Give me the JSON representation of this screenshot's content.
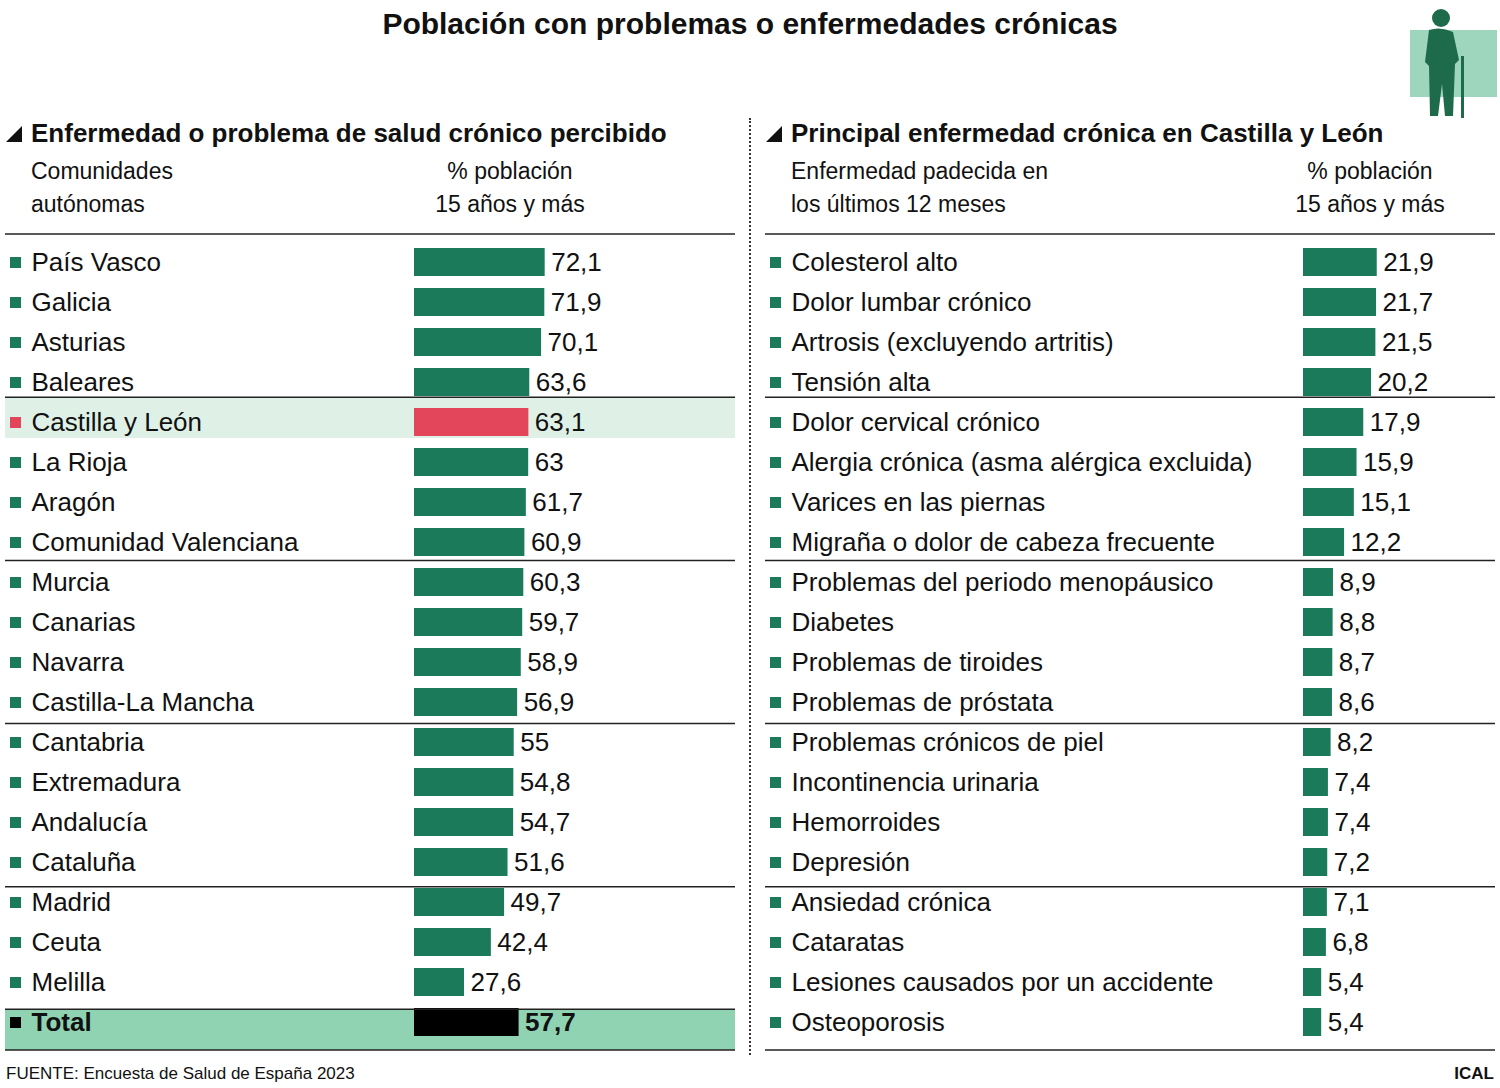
{
  "title": "Población con problemas o enfermedades crónicas",
  "source": "FUENTE: Encuesta de Salud de España 2023",
  "credit": "ICAL",
  "chart_data": [
    {
      "type": "bar",
      "orientation": "horizontal",
      "title": "Enfermedad o problema de salud crónico percibido",
      "ylabel": "Comunidades autónomas",
      "xlabel": "% población 15 años y más",
      "categories": [
        "País Vasco",
        "Galicia",
        "Asturias",
        "Baleares",
        "Castilla y León",
        "La Rioja",
        "Aragón",
        "Comunidad Valenciana",
        "Murcia",
        "Canarias",
        "Navarra",
        "Castilla-La Mancha",
        "Cantabria",
        "Extremadura",
        "Andalucía",
        "Cataluña",
        "Madrid",
        "Ceuta",
        "Melilla",
        "Total"
      ],
      "values": [
        72.1,
        71.9,
        70.1,
        63.6,
        63.1,
        63,
        61.7,
        60.9,
        60.3,
        59.7,
        58.9,
        56.9,
        55,
        54.8,
        54.7,
        51.6,
        49.7,
        42.4,
        27.6,
        57.7
      ],
      "value_labels": [
        "72,1",
        "71,9",
        "70,1",
        "63,6",
        "63,1",
        "63",
        "61,7",
        "60,9",
        "60,3",
        "59,7",
        "58,9",
        "56,9",
        "55",
        "54,8",
        "54,7",
        "51,6",
        "49,7",
        "42,4",
        "27,6",
        "57,7"
      ],
      "colors": [
        "#1a7a5a",
        "#1a7a5a",
        "#1a7a5a",
        "#1a7a5a",
        "#e3455a",
        "#1a7a5a",
        "#1a7a5a",
        "#1a7a5a",
        "#1a7a5a",
        "#1a7a5a",
        "#1a7a5a",
        "#1a7a5a",
        "#1a7a5a",
        "#1a7a5a",
        "#1a7a5a",
        "#1a7a5a",
        "#1a7a5a",
        "#1a7a5a",
        "#1a7a5a",
        "#000000"
      ],
      "xlim": [
        0,
        80
      ],
      "data_labels": true,
      "tick_labels": "y",
      "grid": false
    },
    {
      "type": "bar",
      "orientation": "horizontal",
      "title": "Principal enfermedad crónica en Castilla y León",
      "ylabel": "Enfermedad padecida en los últimos 12 meses",
      "xlabel": "% población 15 años y más",
      "categories": [
        "Colesterol alto",
        "Dolor lumbar crónico",
        "Artrosis (excluyendo artritis)",
        "Tensión alta",
        "Dolor cervical crónico",
        "Alergia crónica (asma alérgica excluida)",
        "Varices en las piernas",
        "Migraña o dolor de cabeza frecuente",
        "Problemas del periodo menopáusico",
        "Diabetes",
        "Problemas de tiroides",
        "Problemas de próstata",
        "Problemas crónicos de piel",
        "Incontinencia urinaria",
        "Hemorroides",
        "Depresión",
        "Ansiedad crónica",
        "Cataratas",
        "Lesiones causados por un accidente",
        "Osteoporosis"
      ],
      "values": [
        21.9,
        21.7,
        21.5,
        20.2,
        17.9,
        15.9,
        15.1,
        12.2,
        8.9,
        8.8,
        8.7,
        8.6,
        8.2,
        7.4,
        7.4,
        7.2,
        7.1,
        6.8,
        5.4,
        5.4
      ],
      "value_labels": [
        "21,9",
        "21,7",
        "21,5",
        "20,2",
        "17,9",
        "15,9",
        "15,1",
        "12,2",
        "8,9",
        "8,8",
        "8,7",
        "8,6",
        "8,2",
        "7,4",
        "7,4",
        "7,2",
        "7,1",
        "6,8",
        "5,4",
        "5,4"
      ],
      "color": "#1a7a5a",
      "xlim": [
        0,
        30
      ],
      "data_labels": true,
      "tick_labels": "y",
      "grid": false
    }
  ]
}
